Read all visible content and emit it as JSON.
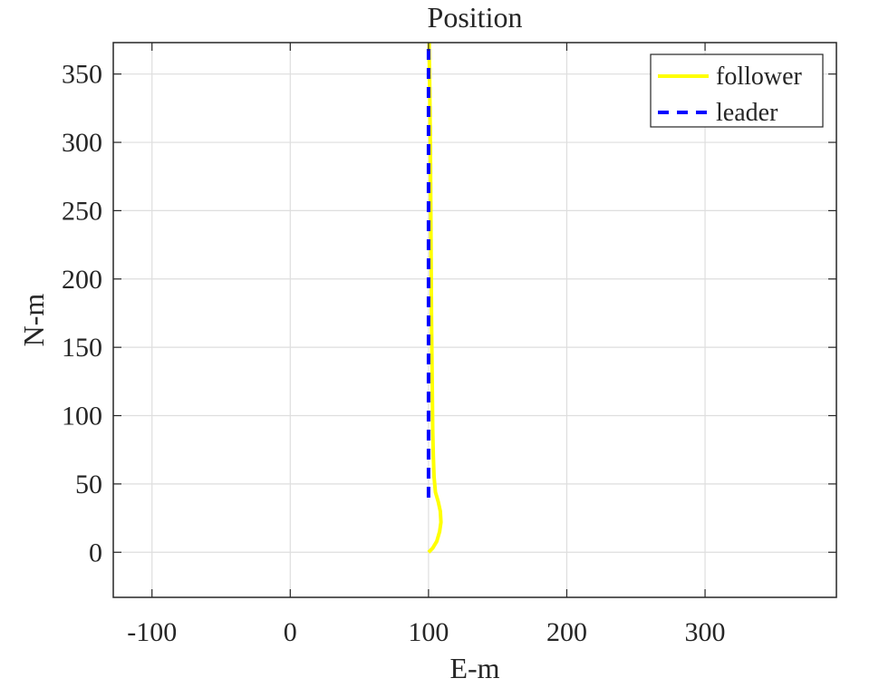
{
  "chart_data": {
    "type": "line",
    "title": "Position",
    "xlabel": "E-m",
    "ylabel": "N-m",
    "xlim": [
      -128,
      395
    ],
    "ylim": [
      -33,
      373
    ],
    "xticks": [
      -100,
      0,
      100,
      200,
      300
    ],
    "yticks": [
      0,
      50,
      100,
      150,
      200,
      250,
      300,
      350
    ],
    "xtick_labels": [
      "-100",
      "0",
      "100",
      "200",
      "300"
    ],
    "ytick_labels": [
      "0",
      "50",
      "100",
      "150",
      "200",
      "250",
      "300",
      "350"
    ],
    "grid": true,
    "legend_position": "top-right",
    "series": [
      {
        "name": "follower",
        "color": "#ffff00",
        "style": "solid",
        "x": [
          100,
          103,
          106,
          108,
          109,
          108.5,
          107,
          105,
          104,
          103.5,
          103,
          102.8,
          102.5,
          102.2,
          102,
          101.8,
          101.6,
          101.4,
          101.2,
          101,
          100.8,
          100.6,
          100.5,
          100.5
        ],
        "y": [
          0,
          3,
          8,
          15,
          22,
          30,
          37,
          44,
          55,
          70,
          90,
          110,
          140,
          170,
          200,
          230,
          260,
          290,
          310,
          330,
          345,
          358,
          368,
          373
        ]
      },
      {
        "name": "leader",
        "color": "#0000ff",
        "style": "dashed",
        "x": [
          100,
          100
        ],
        "y": [
          40,
          373
        ]
      }
    ]
  }
}
